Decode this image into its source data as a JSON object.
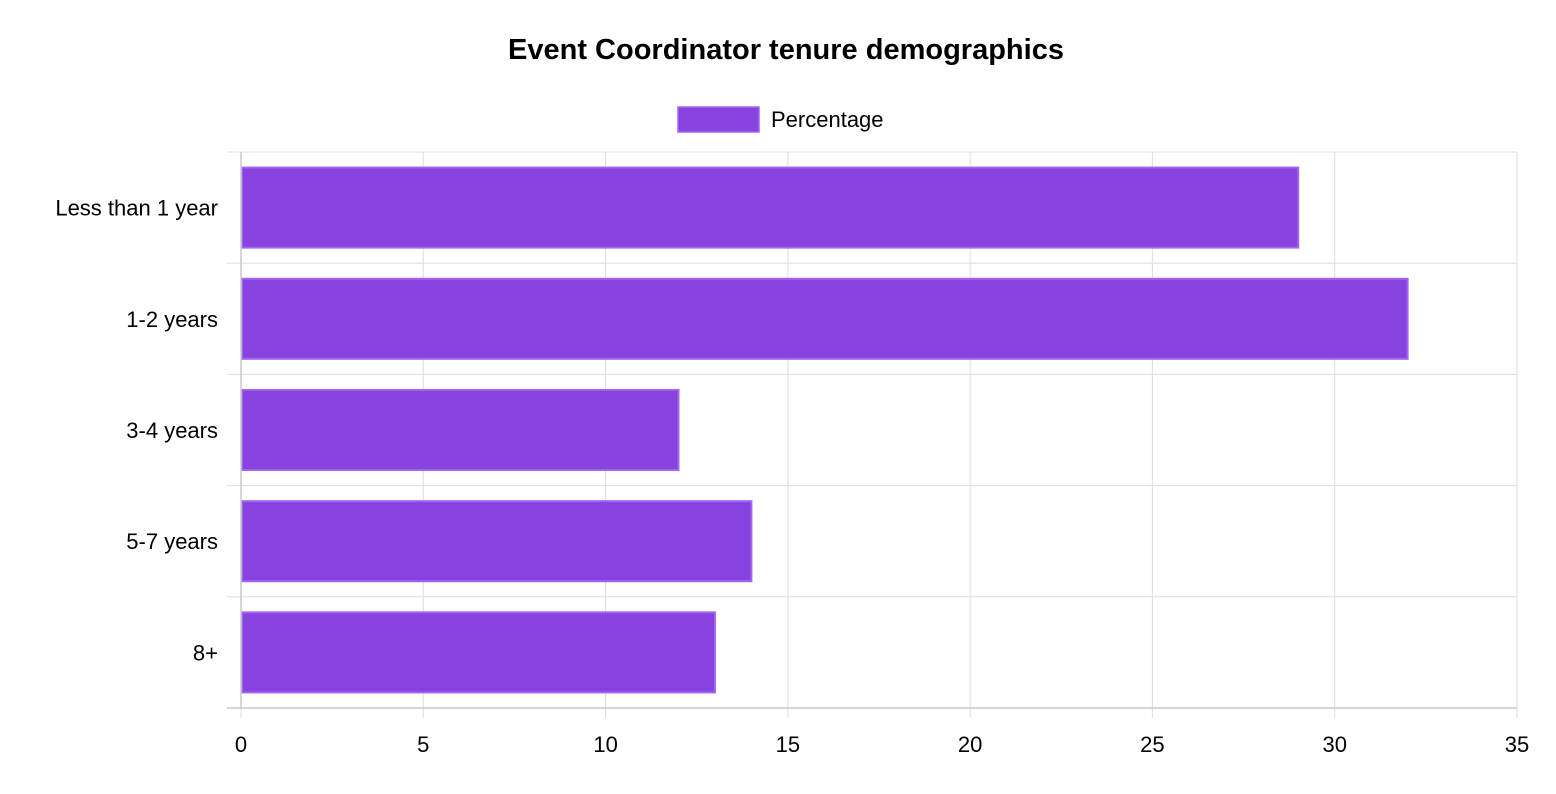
{
  "chart_data": {
    "type": "bar",
    "orientation": "horizontal",
    "title": "Event Coordinator tenure demographics",
    "xlabel": "",
    "ylabel": "",
    "categories": [
      "Less than 1 year",
      "1-2 years",
      "3-4 years",
      "5-7 years",
      "8+"
    ],
    "series": [
      {
        "name": "Percentage",
        "values": [
          29,
          32,
          12,
          14,
          13
        ],
        "color": "#8842df",
        "border_color": "#a066f0"
      }
    ],
    "xlim": [
      0,
      35
    ],
    "x_ticks": [
      "0",
      "5",
      "10",
      "15",
      "20",
      "25",
      "30",
      "35"
    ],
    "grid": true,
    "legend_position": "top"
  }
}
